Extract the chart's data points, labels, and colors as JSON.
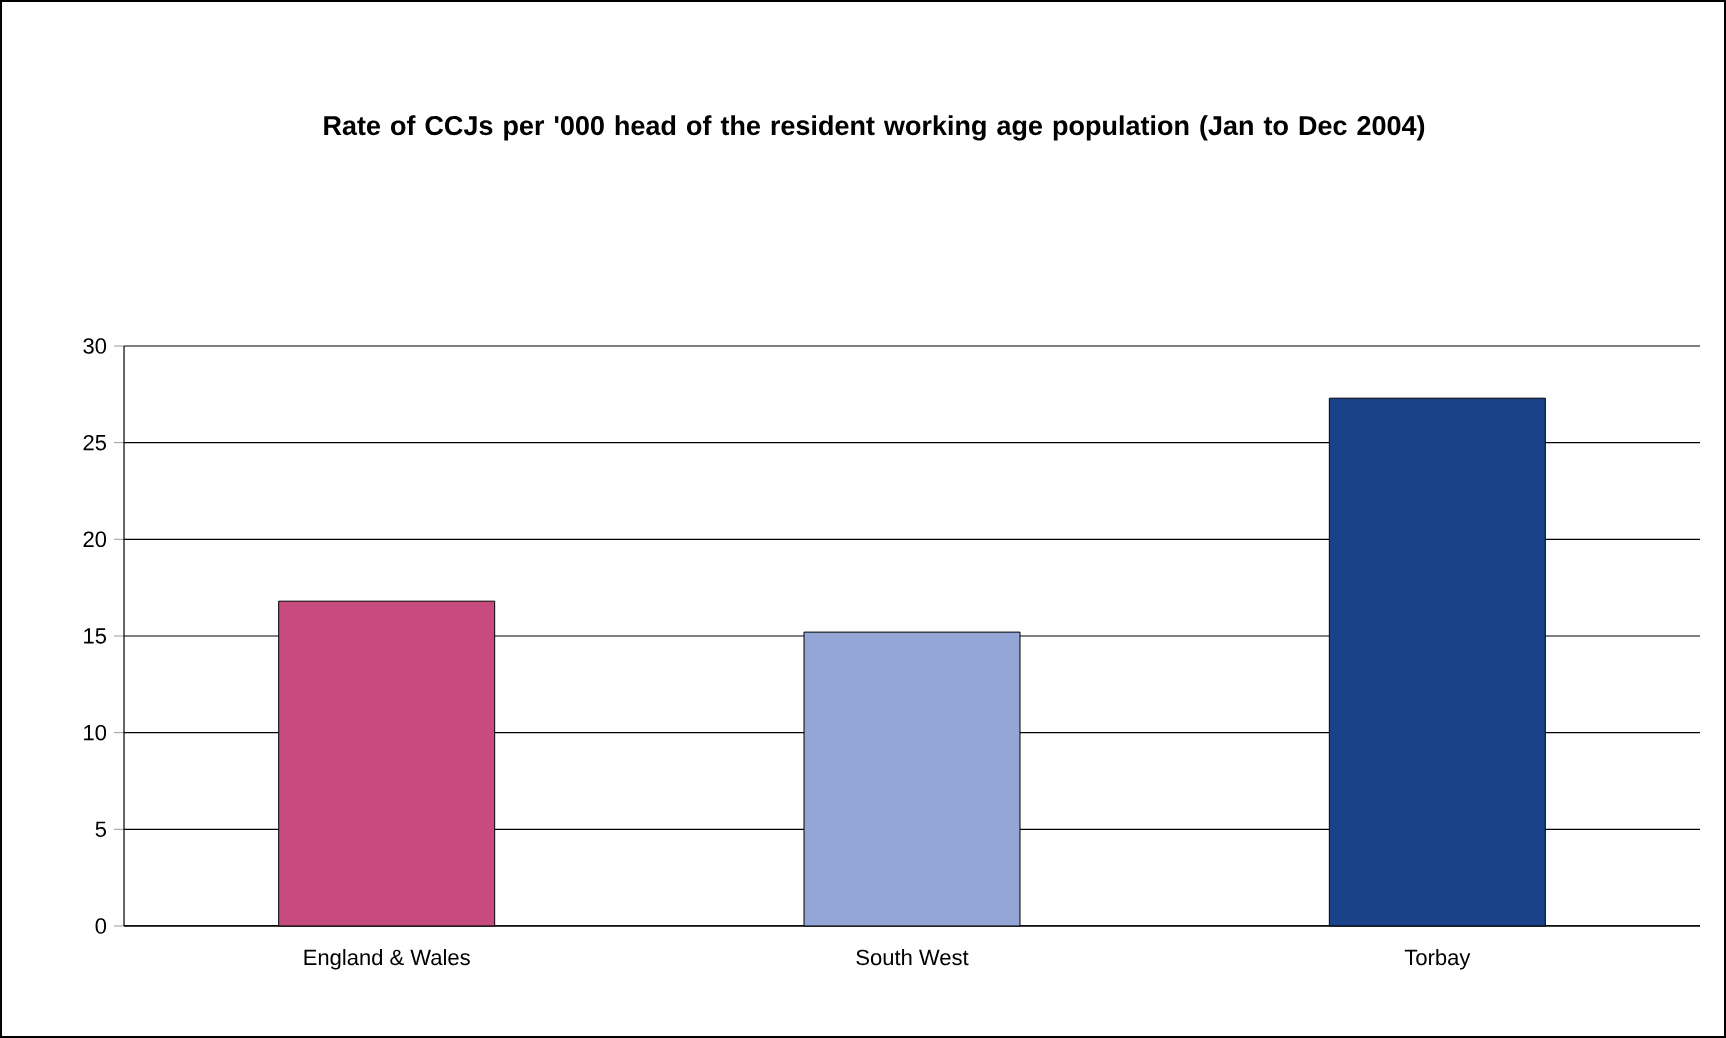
{
  "chart_data": {
    "type": "bar",
    "title": "Rate of CCJs per '000 head of the resident working age population (Jan to Dec 2004)",
    "categories": [
      "England & Wales",
      "South West",
      "Torbay"
    ],
    "values": [
      16.8,
      15.2,
      27.3
    ],
    "colors": [
      "#c84b80",
      "#93a6d6",
      "#19428b"
    ],
    "ylim": [
      0,
      30
    ],
    "yticks": [
      0,
      5,
      10,
      15,
      20,
      25,
      30
    ],
    "grid": "y"
  }
}
